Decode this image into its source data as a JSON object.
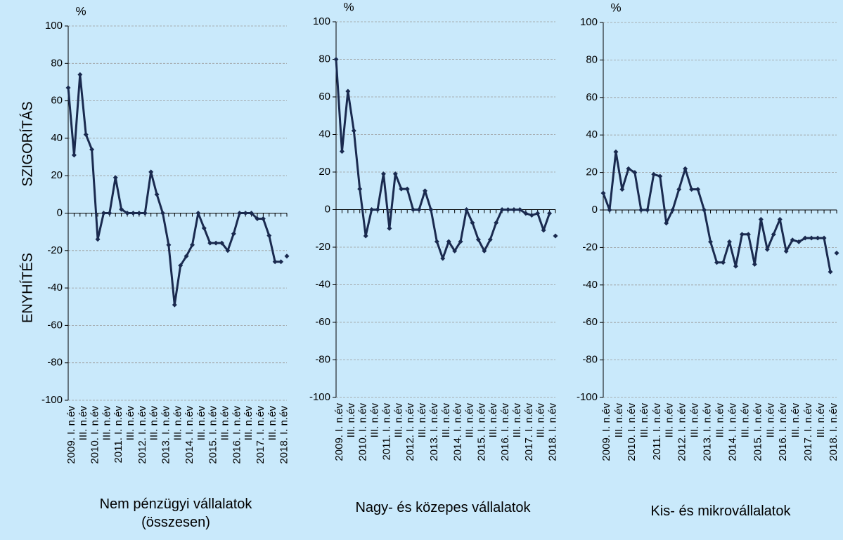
{
  "chart_data": [
    {
      "type": "line",
      "title": "Nem pénzügyi vállalatok (összesen)",
      "y_unit": "%",
      "ylabel_upper": "SZIGORÍTÁS",
      "ylabel_lower": "ENYHÍTÉS",
      "categories": [
        "2009. I. n.év",
        null,
        "III. n.év",
        null,
        "2010. I. n.év",
        null,
        "III. n.év",
        null,
        "2011. I. n.év",
        null,
        "III. n.év",
        null,
        "2012. I. n.év",
        null,
        "III. n.év",
        null,
        "2013. I. n.év",
        null,
        "III. n.év",
        null,
        "2014. I. n.év",
        null,
        "III. n.év",
        null,
        "2015. I. n.év",
        null,
        "III. n.év",
        null,
        "2016. I. n.év",
        null,
        "III. n.év",
        null,
        "2017. I. n.év",
        null,
        "III. n.év",
        null,
        "2018. I. n.év",
        null
      ],
      "series": [
        {
          "color": "#1a2a4f",
          "values": [
            67,
            31,
            74,
            42,
            34,
            -14,
            0,
            0,
            19,
            2,
            0,
            0,
            0,
            0,
            22,
            10,
            0,
            -17,
            -49,
            -28,
            -23,
            -17,
            0,
            -8,
            -16,
            -16,
            -16,
            -20,
            -11,
            0,
            0,
            0,
            -3,
            -3,
            -12,
            -26,
            -26,
            null
          ]
        },
        {
          "color": "#1a2a4f",
          "values": [
            null,
            null,
            null,
            null,
            null,
            null,
            null,
            null,
            null,
            null,
            null,
            null,
            null,
            null,
            null,
            null,
            null,
            null,
            null,
            null,
            null,
            null,
            null,
            null,
            null,
            null,
            null,
            null,
            null,
            null,
            null,
            null,
            null,
            null,
            null,
            null,
            null,
            -23
          ]
        }
      ],
      "ylim": [
        -100,
        100
      ],
      "yticks": [
        -100,
        -80,
        -60,
        -40,
        -20,
        0,
        20,
        40,
        60,
        80,
        100
      ],
      "grid": true
    },
    {
      "type": "line",
      "title": "Nagy- és közepes vállalatok",
      "y_unit": "%",
      "categories": [
        "2009. I. n.év",
        null,
        "III. n.év",
        null,
        "2010. I. n.év",
        null,
        "III. n.év",
        null,
        "2011. I. n.év",
        null,
        "III. n.év",
        null,
        "2012. I. n.év",
        null,
        "III. n.év",
        null,
        "2013. I. n.év",
        null,
        "III. n.év",
        null,
        "2014. I. n.év",
        null,
        "III. n.év",
        null,
        "2015. I. n.év",
        null,
        "III. n.év",
        null,
        "2016. I. n.év",
        null,
        "III. n.év",
        null,
        "2017. I. n.év",
        null,
        "III. n.év",
        null,
        "2018. I. n.év",
        null
      ],
      "series": [
        {
          "color": "#1a2a4f",
          "values": [
            80,
            31,
            63,
            42,
            11,
            -14,
            0,
            0,
            19,
            -10,
            19,
            11,
            11,
            0,
            0,
            10,
            0,
            -17,
            -26,
            -17,
            -22,
            -17,
            0,
            -7,
            -16,
            -22,
            -16,
            -7,
            0,
            0,
            0,
            0,
            -2,
            -3,
            -2,
            -11,
            -2,
            null
          ]
        },
        {
          "color": "#1a2a4f",
          "values": [
            null,
            null,
            null,
            null,
            null,
            null,
            null,
            null,
            null,
            null,
            null,
            null,
            null,
            null,
            null,
            null,
            null,
            null,
            null,
            null,
            null,
            null,
            null,
            null,
            null,
            null,
            null,
            null,
            null,
            null,
            null,
            null,
            null,
            null,
            null,
            null,
            null,
            -14
          ]
        }
      ],
      "ylim": [
        -100,
        100
      ],
      "yticks": [
        -100,
        -80,
        -60,
        -40,
        -20,
        0,
        20,
        40,
        60,
        80,
        100
      ],
      "grid": true
    },
    {
      "type": "line",
      "title": "Kis- és mikrovállalatok",
      "y_unit": "%",
      "categories": [
        "2009. I. n.év",
        null,
        "III. n.év",
        null,
        "2010. I. n.év",
        null,
        "III. n.év",
        null,
        "2011. I. n.év",
        null,
        "III. n.év",
        null,
        "2012. I. n.év",
        null,
        "III. n.év",
        null,
        "2013. I. n.év",
        null,
        "III. n.év",
        null,
        "2014. I. n.év",
        null,
        "III. n.év",
        null,
        "2015. I. n.év",
        null,
        "III. n.év",
        null,
        "2016. I. n.év",
        null,
        "III. n.év",
        null,
        "2017. I. n.év",
        null,
        "III. n.év",
        null,
        "2018. I. n.év",
        null
      ],
      "series": [
        {
          "color": "#1a2a4f",
          "values": [
            9,
            0,
            31,
            11,
            22,
            20,
            0,
            0,
            19,
            18,
            -7,
            0,
            11,
            22,
            11,
            11,
            0,
            -17,
            -28,
            -28,
            -17,
            -30,
            -13,
            -13,
            -29,
            -5,
            -21,
            -13,
            -5,
            -22,
            -16,
            -17,
            -15,
            -15,
            -15,
            -15,
            -33,
            null
          ]
        },
        {
          "color": "#1a2a4f",
          "values": [
            null,
            null,
            null,
            null,
            null,
            null,
            null,
            null,
            null,
            null,
            null,
            null,
            null,
            null,
            null,
            null,
            null,
            null,
            null,
            null,
            null,
            null,
            null,
            null,
            null,
            null,
            null,
            null,
            null,
            null,
            null,
            null,
            null,
            null,
            null,
            null,
            null,
            -23
          ]
        }
      ],
      "ylim": [
        -100,
        100
      ],
      "yticks": [
        -100,
        -80,
        -60,
        -40,
        -20,
        0,
        20,
        40,
        60,
        80,
        100
      ],
      "grid": true
    }
  ]
}
